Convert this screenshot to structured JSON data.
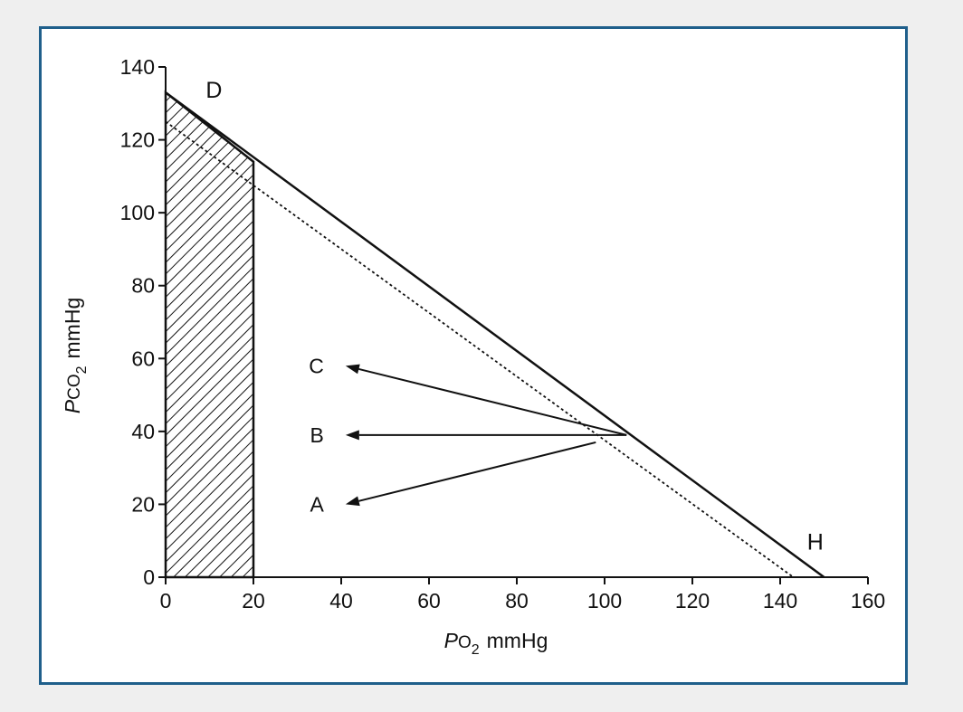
{
  "colors": {
    "frame_border": "#1f5f8b",
    "background": "#efefef",
    "ink": "#111111"
  },
  "chart_data": {
    "type": "line",
    "xlabel_main": "P",
    "xlabel_sub1": "O",
    "xlabel_sub2": "2",
    "xlabel_unit": "mmHg",
    "ylabel_main": "P",
    "ylabel_sub1": "CO",
    "ylabel_sub2": "2",
    "ylabel_unit": "mmHg",
    "xlim": [
      0,
      160
    ],
    "ylim": [
      0,
      140
    ],
    "xticks": [
      "0",
      "20",
      "40",
      "60",
      "80",
      "100",
      "120",
      "140",
      "160"
    ],
    "yticks": [
      "0",
      "20",
      "40",
      "60",
      "80",
      "100",
      "120",
      "140"
    ],
    "series": [
      {
        "style": "solid",
        "x": [
          0,
          150
        ],
        "y": [
          133,
          0
        ]
      },
      {
        "style": "dotted",
        "x": [
          0,
          143
        ],
        "y": [
          125,
          0
        ]
      }
    ],
    "shaded_region": {
      "pattern": "hatch",
      "x": [
        0,
        20
      ],
      "y_top_at_x0": 133,
      "y_top_at_x20": 114
    },
    "arrows": [
      {
        "label": "C",
        "from": [
          105,
          39
        ],
        "to": [
          41,
          58
        ]
      },
      {
        "label": "B",
        "from": [
          105,
          39
        ],
        "to": [
          41,
          39
        ]
      },
      {
        "label": "A",
        "from": [
          98,
          37
        ],
        "to": [
          41,
          20
        ]
      }
    ],
    "point_labels": [
      {
        "label": "D",
        "x": 11,
        "y": 133
      },
      {
        "label": "H",
        "x": 148,
        "y": 9
      }
    ]
  }
}
